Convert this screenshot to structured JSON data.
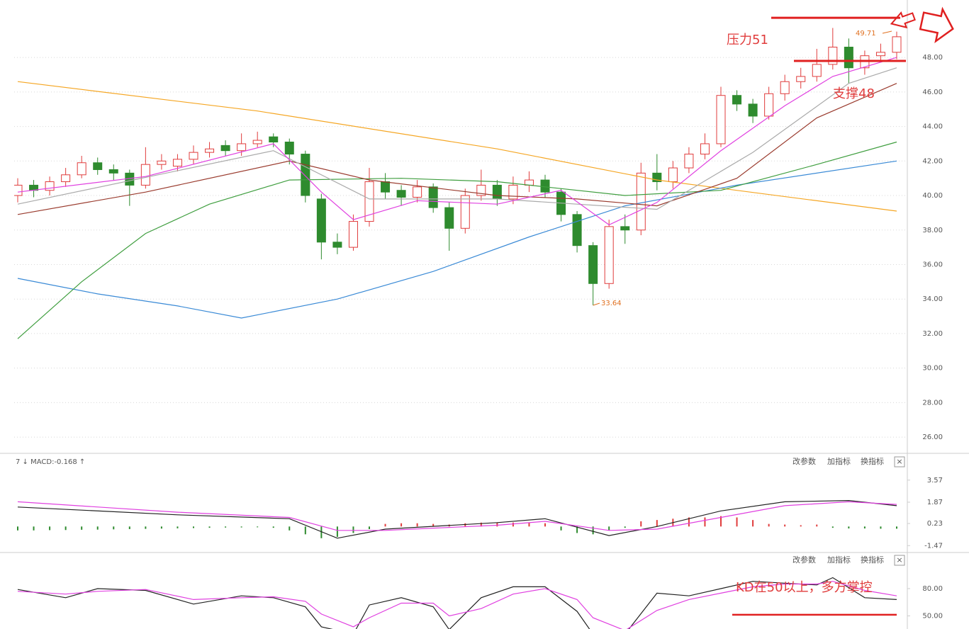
{
  "chart_data": [
    {
      "type": "candlestick",
      "ylim": [
        25.06,
        51.33
      ],
      "yticks": [
        {
          "value": 26,
          "label": "26.00"
        },
        {
          "value": 28,
          "label": "28.00"
        },
        {
          "value": 30,
          "label": "30.00"
        },
        {
          "value": 32,
          "label": "32.00"
        },
        {
          "value": 34,
          "label": "34.00"
        },
        {
          "value": 36,
          "label": "36.00"
        },
        {
          "value": 38,
          "label": "38.00"
        },
        {
          "value": 40,
          "label": "40.00"
        },
        {
          "value": 42,
          "label": "42.00"
        },
        {
          "value": 44,
          "label": "44.00"
        },
        {
          "value": 46,
          "label": "46.00"
        },
        {
          "value": 48,
          "label": "48.00"
        }
      ],
      "grid": true,
      "up_color": "#e03c3c",
      "down_color": "#2e8b2e",
      "candles": {
        "open": [
          40.0,
          40.6,
          40.3,
          40.8,
          41.2,
          41.9,
          41.5,
          41.3,
          40.6,
          41.8,
          41.7,
          42.1,
          42.5,
          42.9,
          42.6,
          43.0,
          43.4,
          43.1,
          42.4,
          39.8,
          37.3,
          37.0,
          38.5,
          40.8,
          40.3,
          39.9,
          40.5,
          39.3,
          38.1,
          40.0,
          40.6,
          39.8,
          40.6,
          40.9,
          40.2,
          38.9,
          37.1,
          34.9,
          38.2,
          38.0,
          41.3,
          40.8,
          41.6,
          42.4,
          43.0,
          45.8,
          45.3,
          44.6,
          45.9,
          46.6,
          46.9,
          47.6,
          48.6,
          47.4,
          48.1,
          48.3
        ],
        "high": [
          41.0,
          40.9,
          41.1,
          41.6,
          42.3,
          42.2,
          41.8,
          41.5,
          42.8,
          42.4,
          42.4,
          42.9,
          43.1,
          43.2,
          43.6,
          43.7,
          43.6,
          43.3,
          42.6,
          40.1,
          37.8,
          38.9,
          41.6,
          41.3,
          40.6,
          40.9,
          40.7,
          39.6,
          40.4,
          41.5,
          40.9,
          41.1,
          41.4,
          41.2,
          40.4,
          39.1,
          37.3,
          38.6,
          38.9,
          41.9,
          42.4,
          42.0,
          42.8,
          43.6,
          46.3,
          46.1,
          45.6,
          46.3,
          47.0,
          47.4,
          48.5,
          49.71,
          49.1,
          48.4,
          48.8,
          49.5
        ],
        "low": [
          39.6,
          39.9,
          40.0,
          40.5,
          41.0,
          41.2,
          40.9,
          39.4,
          40.4,
          41.5,
          41.4,
          41.8,
          42.2,
          42.3,
          42.3,
          42.8,
          42.8,
          41.8,
          39.6,
          36.3,
          36.6,
          36.8,
          38.2,
          39.8,
          39.4,
          39.6,
          39.0,
          36.8,
          37.8,
          39.7,
          39.4,
          39.5,
          40.2,
          39.9,
          38.5,
          36.7,
          33.64,
          34.6,
          37.2,
          37.7,
          40.3,
          40.4,
          41.3,
          42.1,
          42.8,
          44.9,
          44.2,
          44.4,
          45.5,
          46.2,
          46.6,
          47.3,
          46.5,
          47.0,
          47.8,
          47.9
        ],
        "close": [
          40.6,
          40.3,
          40.8,
          41.2,
          41.9,
          41.5,
          41.3,
          40.6,
          41.8,
          42.0,
          42.1,
          42.5,
          42.7,
          42.6,
          43.0,
          43.2,
          43.1,
          42.4,
          40.0,
          37.3,
          37.0,
          38.5,
          40.8,
          40.2,
          39.9,
          40.5,
          39.3,
          38.1,
          40.0,
          40.6,
          39.8,
          40.6,
          40.9,
          40.2,
          38.9,
          37.1,
          34.9,
          38.2,
          38.0,
          41.3,
          40.8,
          41.6,
          42.4,
          43.0,
          45.8,
          45.3,
          44.6,
          45.9,
          46.6,
          46.9,
          47.6,
          48.6,
          47.4,
          48.1,
          48.3,
          49.2
        ]
      },
      "series": [
        {
          "color": "#f5a623",
          "x": [
            0,
            15,
            30,
            40,
            55
          ],
          "values": [
            46.6,
            44.9,
            42.7,
            40.9,
            39.1
          ]
        },
        {
          "color": "#3a8ad6",
          "x": [
            0,
            5,
            10,
            14,
            20,
            26,
            32,
            38,
            45,
            55
          ],
          "values": [
            35.2,
            34.3,
            33.6,
            32.9,
            34.0,
            35.6,
            37.6,
            39.4,
            40.6,
            42.0
          ]
        },
        {
          "color": "#3f9e3f",
          "x": [
            0,
            4,
            8,
            12,
            17,
            24,
            30,
            38,
            44,
            50,
            55
          ],
          "values": [
            31.7,
            35.0,
            37.8,
            39.5,
            40.9,
            41.0,
            40.8,
            40.0,
            40.3,
            41.8,
            43.1
          ]
        },
        {
          "color": "#9a3b2e",
          "x": [
            0,
            8,
            17,
            22,
            30,
            35,
            40,
            45,
            50,
            55
          ],
          "values": [
            38.9,
            40.2,
            42.0,
            40.9,
            40.0,
            39.8,
            39.4,
            41.0,
            44.5,
            46.5
          ]
        },
        {
          "color": "#aaaaaa",
          "x": [
            0,
            16,
            22,
            30,
            40,
            46,
            52,
            55
          ],
          "values": [
            39.5,
            42.6,
            39.8,
            39.8,
            39.2,
            42.5,
            46.5,
            47.4
          ]
        },
        {
          "color": "#e040e0",
          "x": [
            0,
            8,
            16,
            19,
            21,
            25,
            30,
            34,
            37,
            40,
            44,
            48,
            51,
            55
          ],
          "values": [
            40.2,
            41.1,
            43.0,
            40.2,
            38.6,
            39.7,
            39.5,
            40.3,
            38.3,
            39.6,
            42.6,
            45.2,
            46.9,
            48.0
          ]
        }
      ],
      "annotations": [
        "压力51",
        "支撑48",
        "49.71",
        "33.64"
      ],
      "hlines": [
        50.3,
        47.8
      ]
    },
    {
      "type": "macd",
      "title": "7 ↓ MACD:-0.168 ↑",
      "buttons": [
        "改参数",
        "加指标",
        "换指标",
        "×"
      ],
      "ylim": [
        -2.0,
        4.54
      ],
      "yticks": [
        3.57,
        1.87,
        0.23,
        -1.47
      ],
      "up_color": "#e03c3c",
      "down_color": "#2e8b2e",
      "values": [
        -0.3,
        -0.3,
        -0.28,
        -0.27,
        -0.25,
        -0.24,
        -0.22,
        -0.2,
        -0.18,
        -0.16,
        -0.14,
        -0.12,
        -0.1,
        -0.08,
        -0.07,
        -0.06,
        -0.1,
        -0.3,
        -0.6,
        -0.9,
        -0.8,
        -0.5,
        -0.2,
        0.2,
        0.25,
        0.25,
        0.2,
        0.15,
        0.25,
        0.3,
        0.3,
        0.3,
        0.3,
        0.25,
        -0.3,
        -0.5,
        -0.6,
        -0.3,
        -0.1,
        0.4,
        0.5,
        0.6,
        0.7,
        0.7,
        0.8,
        0.7,
        0.5,
        0.2,
        0.15,
        0.1,
        0.15,
        -0.1,
        -0.15,
        -0.15,
        -0.17,
        -0.168
      ],
      "series": [
        {
          "color": "#222222",
          "x": [
            0,
            10,
            17,
            20,
            23,
            30,
            33,
            37,
            40,
            44,
            48,
            52,
            55
          ],
          "values": [
            1.5,
            0.9,
            0.6,
            -0.9,
            -0.2,
            0.3,
            0.6,
            -0.7,
            0.0,
            1.2,
            1.9,
            2.0,
            1.6
          ]
        },
        {
          "color": "#e040e0",
          "x": [
            0,
            10,
            17,
            20,
            23,
            30,
            33,
            37,
            40,
            44,
            48,
            52,
            55
          ],
          "values": [
            1.9,
            1.1,
            0.7,
            -0.3,
            -0.3,
            0.1,
            0.4,
            -0.3,
            -0.2,
            0.7,
            1.6,
            1.9,
            1.7
          ]
        }
      ]
    },
    {
      "type": "kd",
      "buttons": [
        "改参数",
        "加指标",
        "换指标",
        "×"
      ],
      "ylim": [
        35.6,
        104.1
      ],
      "yticks": [
        {
          "value": 80,
          "label": "80.00"
        },
        {
          "value": 50,
          "label": "50.00"
        }
      ],
      "series": [
        {
          "color": "#222222",
          "x": [
            0,
            3,
            5,
            8,
            11,
            14,
            16,
            18,
            19,
            21,
            22,
            24,
            26,
            27,
            29,
            31,
            33,
            35,
            36,
            38,
            40,
            42,
            44,
            46,
            48,
            50,
            51,
            53,
            55
          ],
          "values": [
            79,
            70,
            80,
            78,
            63,
            72,
            70,
            60,
            38,
            30,
            62,
            70,
            60,
            35,
            70,
            82,
            82,
            55,
            30,
            30,
            75,
            72,
            80,
            88,
            86,
            84,
            92,
            70,
            68
          ]
        },
        {
          "color": "#e040e0",
          "x": [
            0,
            3,
            5,
            8,
            11,
            14,
            16,
            18,
            19,
            21,
            22,
            24,
            26,
            27,
            29,
            31,
            33,
            35,
            36,
            38,
            40,
            42,
            44,
            46,
            48,
            50,
            51,
            53,
            55
          ],
          "values": [
            77,
            74,
            77,
            79,
            68,
            70,
            71,
            66,
            52,
            38,
            48,
            64,
            64,
            50,
            58,
            74,
            80,
            68,
            48,
            34,
            56,
            68,
            75,
            82,
            85,
            85,
            88,
            78,
            72
          ]
        }
      ],
      "annotations": [
        "KD在50以上，多方掌控"
      ],
      "hlines": [
        51.3
      ]
    }
  ]
}
